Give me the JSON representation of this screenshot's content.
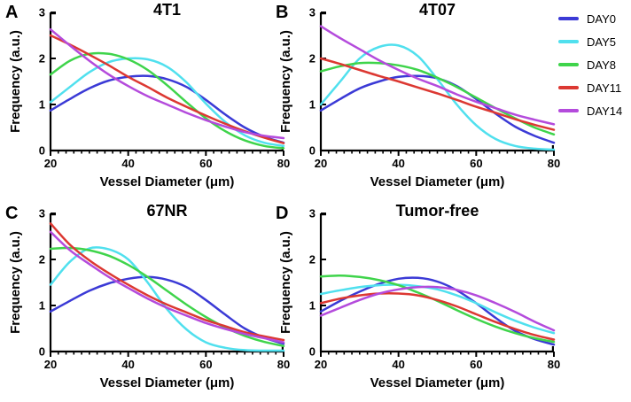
{
  "figure": {
    "background": "#ffffff",
    "axis_color": "#000000",
    "legend": {
      "position": "right-top",
      "entries": [
        {
          "label": "DAY0",
          "color": "#3B3AD6"
        },
        {
          "label": "DAY5",
          "color": "#50E0EE"
        },
        {
          "label": "DAY8",
          "color": "#3FD44B"
        },
        {
          "label": "DAY11",
          "color": "#DC3832"
        },
        {
          "label": "DAY14",
          "color": "#B44BDC"
        }
      ]
    }
  },
  "chart_data": [
    {
      "type": "line",
      "panel": "A",
      "title": "4T1",
      "xlabel": "Vessel Diameter (μm)",
      "ylabel": "Frequency (a.u.)",
      "xlim": [
        20,
        80
      ],
      "ylim": [
        0,
        3
      ],
      "xticks": [
        20,
        40,
        60,
        80
      ],
      "yticks": [
        0,
        1,
        2,
        3
      ],
      "x_minor_step": 2,
      "grid": false,
      "x": [
        20,
        25,
        30,
        35,
        40,
        45,
        50,
        55,
        60,
        65,
        70,
        75,
        80
      ],
      "series": [
        {
          "name": "DAY0",
          "values": [
            0.87,
            1.12,
            1.35,
            1.52,
            1.6,
            1.62,
            1.55,
            1.38,
            1.1,
            0.78,
            0.5,
            0.3,
            0.17
          ]
        },
        {
          "name": "DAY5",
          "values": [
            1.05,
            1.38,
            1.7,
            1.92,
            2.0,
            1.98,
            1.82,
            1.48,
            1.02,
            0.62,
            0.33,
            0.17,
            0.1
          ]
        },
        {
          "name": "DAY8",
          "values": [
            1.65,
            1.95,
            2.1,
            2.1,
            1.98,
            1.75,
            1.42,
            1.05,
            0.7,
            0.42,
            0.22,
            0.1,
            0.05
          ]
        },
        {
          "name": "DAY11",
          "values": [
            2.5,
            2.3,
            2.08,
            1.85,
            1.6,
            1.38,
            1.15,
            0.95,
            0.76,
            0.58,
            0.42,
            0.28,
            0.16
          ]
        },
        {
          "name": "DAY14",
          "values": [
            2.63,
            2.28,
            1.95,
            1.65,
            1.4,
            1.18,
            1.0,
            0.82,
            0.66,
            0.52,
            0.4,
            0.32,
            0.27
          ]
        }
      ]
    },
    {
      "type": "line",
      "panel": "B",
      "title": "4T07",
      "xlabel": "Vessel Diameter (μm)",
      "ylabel": "Frequency (a.u.)",
      "xlim": [
        20,
        80
      ],
      "ylim": [
        0,
        3
      ],
      "xticks": [
        20,
        40,
        60,
        80
      ],
      "yticks": [
        0,
        1,
        2,
        3
      ],
      "x_minor_step": 2,
      "grid": false,
      "x": [
        20,
        25,
        30,
        35,
        40,
        45,
        50,
        55,
        60,
        65,
        70,
        75,
        80
      ],
      "series": [
        {
          "name": "DAY0",
          "values": [
            0.87,
            1.12,
            1.35,
            1.5,
            1.6,
            1.62,
            1.57,
            1.4,
            1.12,
            0.8,
            0.52,
            0.32,
            0.17
          ]
        },
        {
          "name": "DAY5",
          "values": [
            1.0,
            1.5,
            2.0,
            2.25,
            2.28,
            2.05,
            1.55,
            1.0,
            0.55,
            0.25,
            0.1,
            0.04,
            0.02
          ]
        },
        {
          "name": "DAY8",
          "values": [
            1.72,
            1.83,
            1.9,
            1.9,
            1.85,
            1.75,
            1.58,
            1.38,
            1.15,
            0.92,
            0.7,
            0.5,
            0.35
          ]
        },
        {
          "name": "DAY11",
          "values": [
            2.0,
            1.88,
            1.75,
            1.62,
            1.5,
            1.37,
            1.24,
            1.1,
            0.95,
            0.82,
            0.68,
            0.56,
            0.45
          ]
        },
        {
          "name": "DAY14",
          "values": [
            2.7,
            2.44,
            2.2,
            1.96,
            1.75,
            1.56,
            1.4,
            1.22,
            1.06,
            0.92,
            0.78,
            0.67,
            0.57
          ]
        }
      ]
    },
    {
      "type": "line",
      "panel": "C",
      "title": "67NR",
      "xlabel": "Vessel Diameter (μm)",
      "ylabel": "Frequency (a.u.)",
      "xlim": [
        20,
        80
      ],
      "ylim": [
        0,
        3
      ],
      "xticks": [
        20,
        40,
        60,
        80
      ],
      "yticks": [
        0,
        1,
        2,
        3
      ],
      "x_minor_step": 2,
      "grid": false,
      "x": [
        20,
        25,
        30,
        35,
        40,
        45,
        50,
        55,
        60,
        65,
        70,
        75,
        80
      ],
      "series": [
        {
          "name": "DAY0",
          "values": [
            0.87,
            1.1,
            1.32,
            1.48,
            1.58,
            1.62,
            1.56,
            1.4,
            1.12,
            0.8,
            0.5,
            0.3,
            0.17
          ]
        },
        {
          "name": "DAY5",
          "values": [
            1.45,
            1.95,
            2.24,
            2.22,
            2.0,
            1.5,
            0.92,
            0.48,
            0.2,
            0.08,
            0.03,
            0.02,
            0.02
          ]
        },
        {
          "name": "DAY8",
          "values": [
            2.23,
            2.25,
            2.2,
            2.08,
            1.88,
            1.62,
            1.32,
            1.02,
            0.75,
            0.52,
            0.34,
            0.21,
            0.12
          ]
        },
        {
          "name": "DAY11",
          "values": [
            2.78,
            2.32,
            1.98,
            1.7,
            1.45,
            1.22,
            1.02,
            0.85,
            0.68,
            0.55,
            0.42,
            0.33,
            0.25
          ]
        },
        {
          "name": "DAY14",
          "values": [
            2.6,
            2.2,
            1.9,
            1.62,
            1.38,
            1.15,
            0.95,
            0.78,
            0.62,
            0.49,
            0.38,
            0.29,
            0.2
          ]
        }
      ]
    },
    {
      "type": "line",
      "panel": "D",
      "title": "Tumor-free",
      "xlabel": "Vessel Diameter (μm)",
      "ylabel": "Frequency (a.u.)",
      "xlim": [
        20,
        80
      ],
      "ylim": [
        0,
        3
      ],
      "xticks": [
        20,
        40,
        60,
        80
      ],
      "yticks": [
        0,
        1,
        2,
        3
      ],
      "x_minor_step": 2,
      "grid": false,
      "x": [
        20,
        25,
        30,
        35,
        40,
        45,
        50,
        55,
        60,
        65,
        70,
        75,
        80
      ],
      "series": [
        {
          "name": "DAY0",
          "values": [
            0.87,
            1.1,
            1.3,
            1.47,
            1.58,
            1.6,
            1.52,
            1.33,
            1.05,
            0.73,
            0.45,
            0.27,
            0.15
          ]
        },
        {
          "name": "DAY5",
          "values": [
            1.25,
            1.33,
            1.4,
            1.44,
            1.45,
            1.42,
            1.35,
            1.22,
            1.05,
            0.85,
            0.67,
            0.52,
            0.4
          ]
        },
        {
          "name": "DAY8",
          "values": [
            1.63,
            1.65,
            1.62,
            1.55,
            1.44,
            1.28,
            1.1,
            0.9,
            0.71,
            0.54,
            0.4,
            0.29,
            0.21
          ]
        },
        {
          "name": "DAY11",
          "values": [
            1.05,
            1.15,
            1.22,
            1.26,
            1.26,
            1.22,
            1.12,
            0.98,
            0.81,
            0.64,
            0.49,
            0.36,
            0.26
          ]
        },
        {
          "name": "DAY14",
          "values": [
            0.78,
            0.95,
            1.12,
            1.26,
            1.35,
            1.4,
            1.4,
            1.34,
            1.22,
            1.05,
            0.86,
            0.65,
            0.46
          ]
        }
      ]
    }
  ]
}
